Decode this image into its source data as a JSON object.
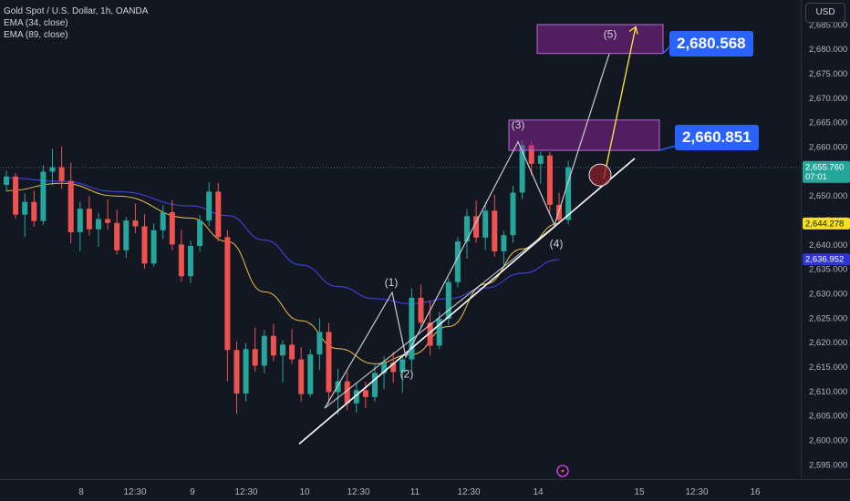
{
  "legend": {
    "title": "Gold Spot / U.S. Dollar, 1h, OANDA",
    "ema_fast": "EMA (34, close)",
    "ema_slow": "EMA (89, close)"
  },
  "currency_button": "USD",
  "callouts": {
    "upper_target": "2,680.568",
    "lower_target": "2,660.851"
  },
  "colors": {
    "background": "#131722",
    "up": "#26a69a",
    "down": "#ef5350",
    "ema_fast": "#e8c245",
    "ema_slow": "#3c3fd6",
    "zone": "#9c27b0",
    "callout": "#2962ff"
  },
  "chart_data": {
    "type": "candlestick",
    "title": "Gold Spot / U.S. Dollar, 1h, OANDA",
    "y_axis": {
      "min": 2592,
      "max": 2690,
      "ticks": [
        2595,
        2600,
        2605,
        2610,
        2615,
        2620,
        2625,
        2630,
        2635,
        2640,
        2645,
        2650,
        2655,
        2660,
        2665,
        2670,
        2675,
        2680,
        2685
      ]
    },
    "x_axis": {
      "tick_labels": [
        "8",
        "12:30",
        "9",
        "12:30",
        "10",
        "12:30",
        "11",
        "12:30",
        "14",
        "15",
        "12:30",
        "16"
      ]
    },
    "price_labels": [
      {
        "value": 2655.76,
        "text": "2,655.760",
        "subtext": "07:01",
        "kind": "last-price"
      },
      {
        "value": 2644.278,
        "text": "2,644.278",
        "kind": "ema-34"
      },
      {
        "value": 2636.952,
        "text": "2,636.952",
        "kind": "ema-89"
      }
    ],
    "wave_labels": [
      "(1)",
      "(2)",
      "(3)",
      "(4)",
      "(5)"
    ],
    "targets": [
      2680.568,
      2660.851
    ],
    "candles": [
      [
        2652.2,
        2655.1,
        2650.8,
        2653.9
      ],
      [
        2653.9,
        2654.6,
        2645.3,
        2646.1
      ],
      [
        2646.1,
        2650.4,
        2641.5,
        2648.7
      ],
      [
        2648.7,
        2651.0,
        2643.6,
        2644.8
      ],
      [
        2644.8,
        2656.2,
        2644.0,
        2654.9
      ],
      [
        2654.9,
        2659.6,
        2652.1,
        2655.8
      ],
      [
        2655.8,
        2660.0,
        2651.4,
        2653.0
      ],
      [
        2653.0,
        2656.7,
        2640.2,
        2642.5
      ],
      [
        2642.5,
        2648.8,
        2638.6,
        2647.3
      ],
      [
        2647.3,
        2649.9,
        2641.8,
        2643.1
      ],
      [
        2643.1,
        2646.5,
        2639.5,
        2645.2
      ],
      [
        2645.2,
        2649.2,
        2643.0,
        2644.4
      ],
      [
        2644.4,
        2647.1,
        2637.9,
        2638.8
      ],
      [
        2638.8,
        2645.6,
        2637.2,
        2644.9
      ],
      [
        2644.9,
        2648.4,
        2642.3,
        2643.7
      ],
      [
        2643.7,
        2646.2,
        2635.0,
        2636.1
      ],
      [
        2636.1,
        2644.3,
        2635.5,
        2642.9
      ],
      [
        2642.9,
        2648.0,
        2641.1,
        2646.6
      ],
      [
        2646.6,
        2649.1,
        2638.8,
        2640.0
      ],
      [
        2640.0,
        2643.0,
        2632.4,
        2633.5
      ],
      [
        2633.5,
        2640.8,
        2632.1,
        2639.7
      ],
      [
        2639.7,
        2646.0,
        2638.5,
        2644.9
      ],
      [
        2644.9,
        2652.7,
        2643.7,
        2650.8
      ],
      [
        2650.8,
        2652.6,
        2640.6,
        2641.5
      ],
      [
        2641.5,
        2642.9,
        2612.0,
        2618.4
      ],
      [
        2618.4,
        2620.1,
        2605.4,
        2609.5
      ],
      [
        2609.5,
        2619.8,
        2607.9,
        2618.6
      ],
      [
        2618.6,
        2623.0,
        2614.0,
        2615.2
      ],
      [
        2615.2,
        2622.5,
        2613.7,
        2621.3
      ],
      [
        2621.3,
        2623.8,
        2616.1,
        2617.3
      ],
      [
        2617.3,
        2620.4,
        2611.8,
        2619.5
      ],
      [
        2619.5,
        2622.7,
        2615.6,
        2616.5
      ],
      [
        2616.5,
        2619.0,
        2607.9,
        2609.4
      ],
      [
        2609.4,
        2618.6,
        2608.8,
        2617.5
      ],
      [
        2617.5,
        2624.9,
        2614.3,
        2622.1
      ],
      [
        2622.1,
        2623.9,
        2607.5,
        2609.8
      ],
      [
        2609.8,
        2614.6,
        2605.2,
        2612.0
      ],
      [
        2612.0,
        2614.0,
        2606.1,
        2607.5
      ],
      [
        2607.5,
        2611.7,
        2605.6,
        2610.2
      ],
      [
        2610.2,
        2611.9,
        2606.5,
        2608.8
      ],
      [
        2608.8,
        2615.6,
        2607.9,
        2613.7
      ],
      [
        2613.7,
        2617.1,
        2610.4,
        2615.8
      ],
      [
        2615.8,
        2618.0,
        2611.7,
        2613.9
      ],
      [
        2613.9,
        2617.4,
        2609.7,
        2616.5
      ],
      [
        2616.5,
        2631.0,
        2614.2,
        2629.1
      ],
      [
        2629.1,
        2631.8,
        2622.9,
        2624.0
      ],
      [
        2624.0,
        2628.5,
        2617.3,
        2619.3
      ],
      [
        2619.3,
        2626.2,
        2618.6,
        2624.8
      ],
      [
        2624.8,
        2633.1,
        2623.5,
        2632.3
      ],
      [
        2632.3,
        2641.5,
        2631.2,
        2640.6
      ],
      [
        2640.6,
        2647.2,
        2637.1,
        2645.8
      ],
      [
        2645.8,
        2649.0,
        2640.3,
        2641.4
      ],
      [
        2641.4,
        2648.6,
        2638.8,
        2646.9
      ],
      [
        2646.9,
        2650.2,
        2637.5,
        2638.6
      ],
      [
        2638.6,
        2642.8,
        2635.6,
        2641.9
      ],
      [
        2641.9,
        2652.0,
        2640.4,
        2650.6
      ],
      [
        2650.6,
        2661.2,
        2649.2,
        2660.3
      ],
      [
        2660.3,
        2661.0,
        2654.2,
        2656.5
      ],
      [
        2656.5,
        2659.0,
        2652.4,
        2658.2
      ],
      [
        2658.2,
        2658.9,
        2646.5,
        2648.1
      ],
      [
        2648.1,
        2650.6,
        2644.2,
        2645.0
      ],
      [
        2645.0,
        2657.1,
        2644.1,
        2655.8
      ]
    ],
    "ema_34": [
      [
        0,
        2651.0
      ],
      [
        6,
        2652.5
      ],
      [
        12,
        2649.9
      ],
      [
        20,
        2645.4
      ],
      [
        24,
        2640.6
      ],
      [
        28,
        2630.3
      ],
      [
        32,
        2624.4
      ],
      [
        36,
        2618.7
      ],
      [
        40,
        2615.6
      ],
      [
        44,
        2617.5
      ],
      [
        48,
        2623.2
      ],
      [
        52,
        2631.9
      ],
      [
        56,
        2639.1
      ],
      [
        60,
        2644.3
      ]
    ],
    "ema_89": [
      [
        0,
        2653.6
      ],
      [
        6,
        2652.9
      ],
      [
        12,
        2650.8
      ],
      [
        20,
        2647.9
      ],
      [
        24,
        2645.9
      ],
      [
        28,
        2640.9
      ],
      [
        32,
        2635.8
      ],
      [
        36,
        2631.4
      ],
      [
        40,
        2628.9
      ],
      [
        44,
        2627.9
      ],
      [
        48,
        2628.9
      ],
      [
        52,
        2631.1
      ],
      [
        56,
        2634.1
      ],
      [
        60,
        2636.9
      ]
    ]
  }
}
